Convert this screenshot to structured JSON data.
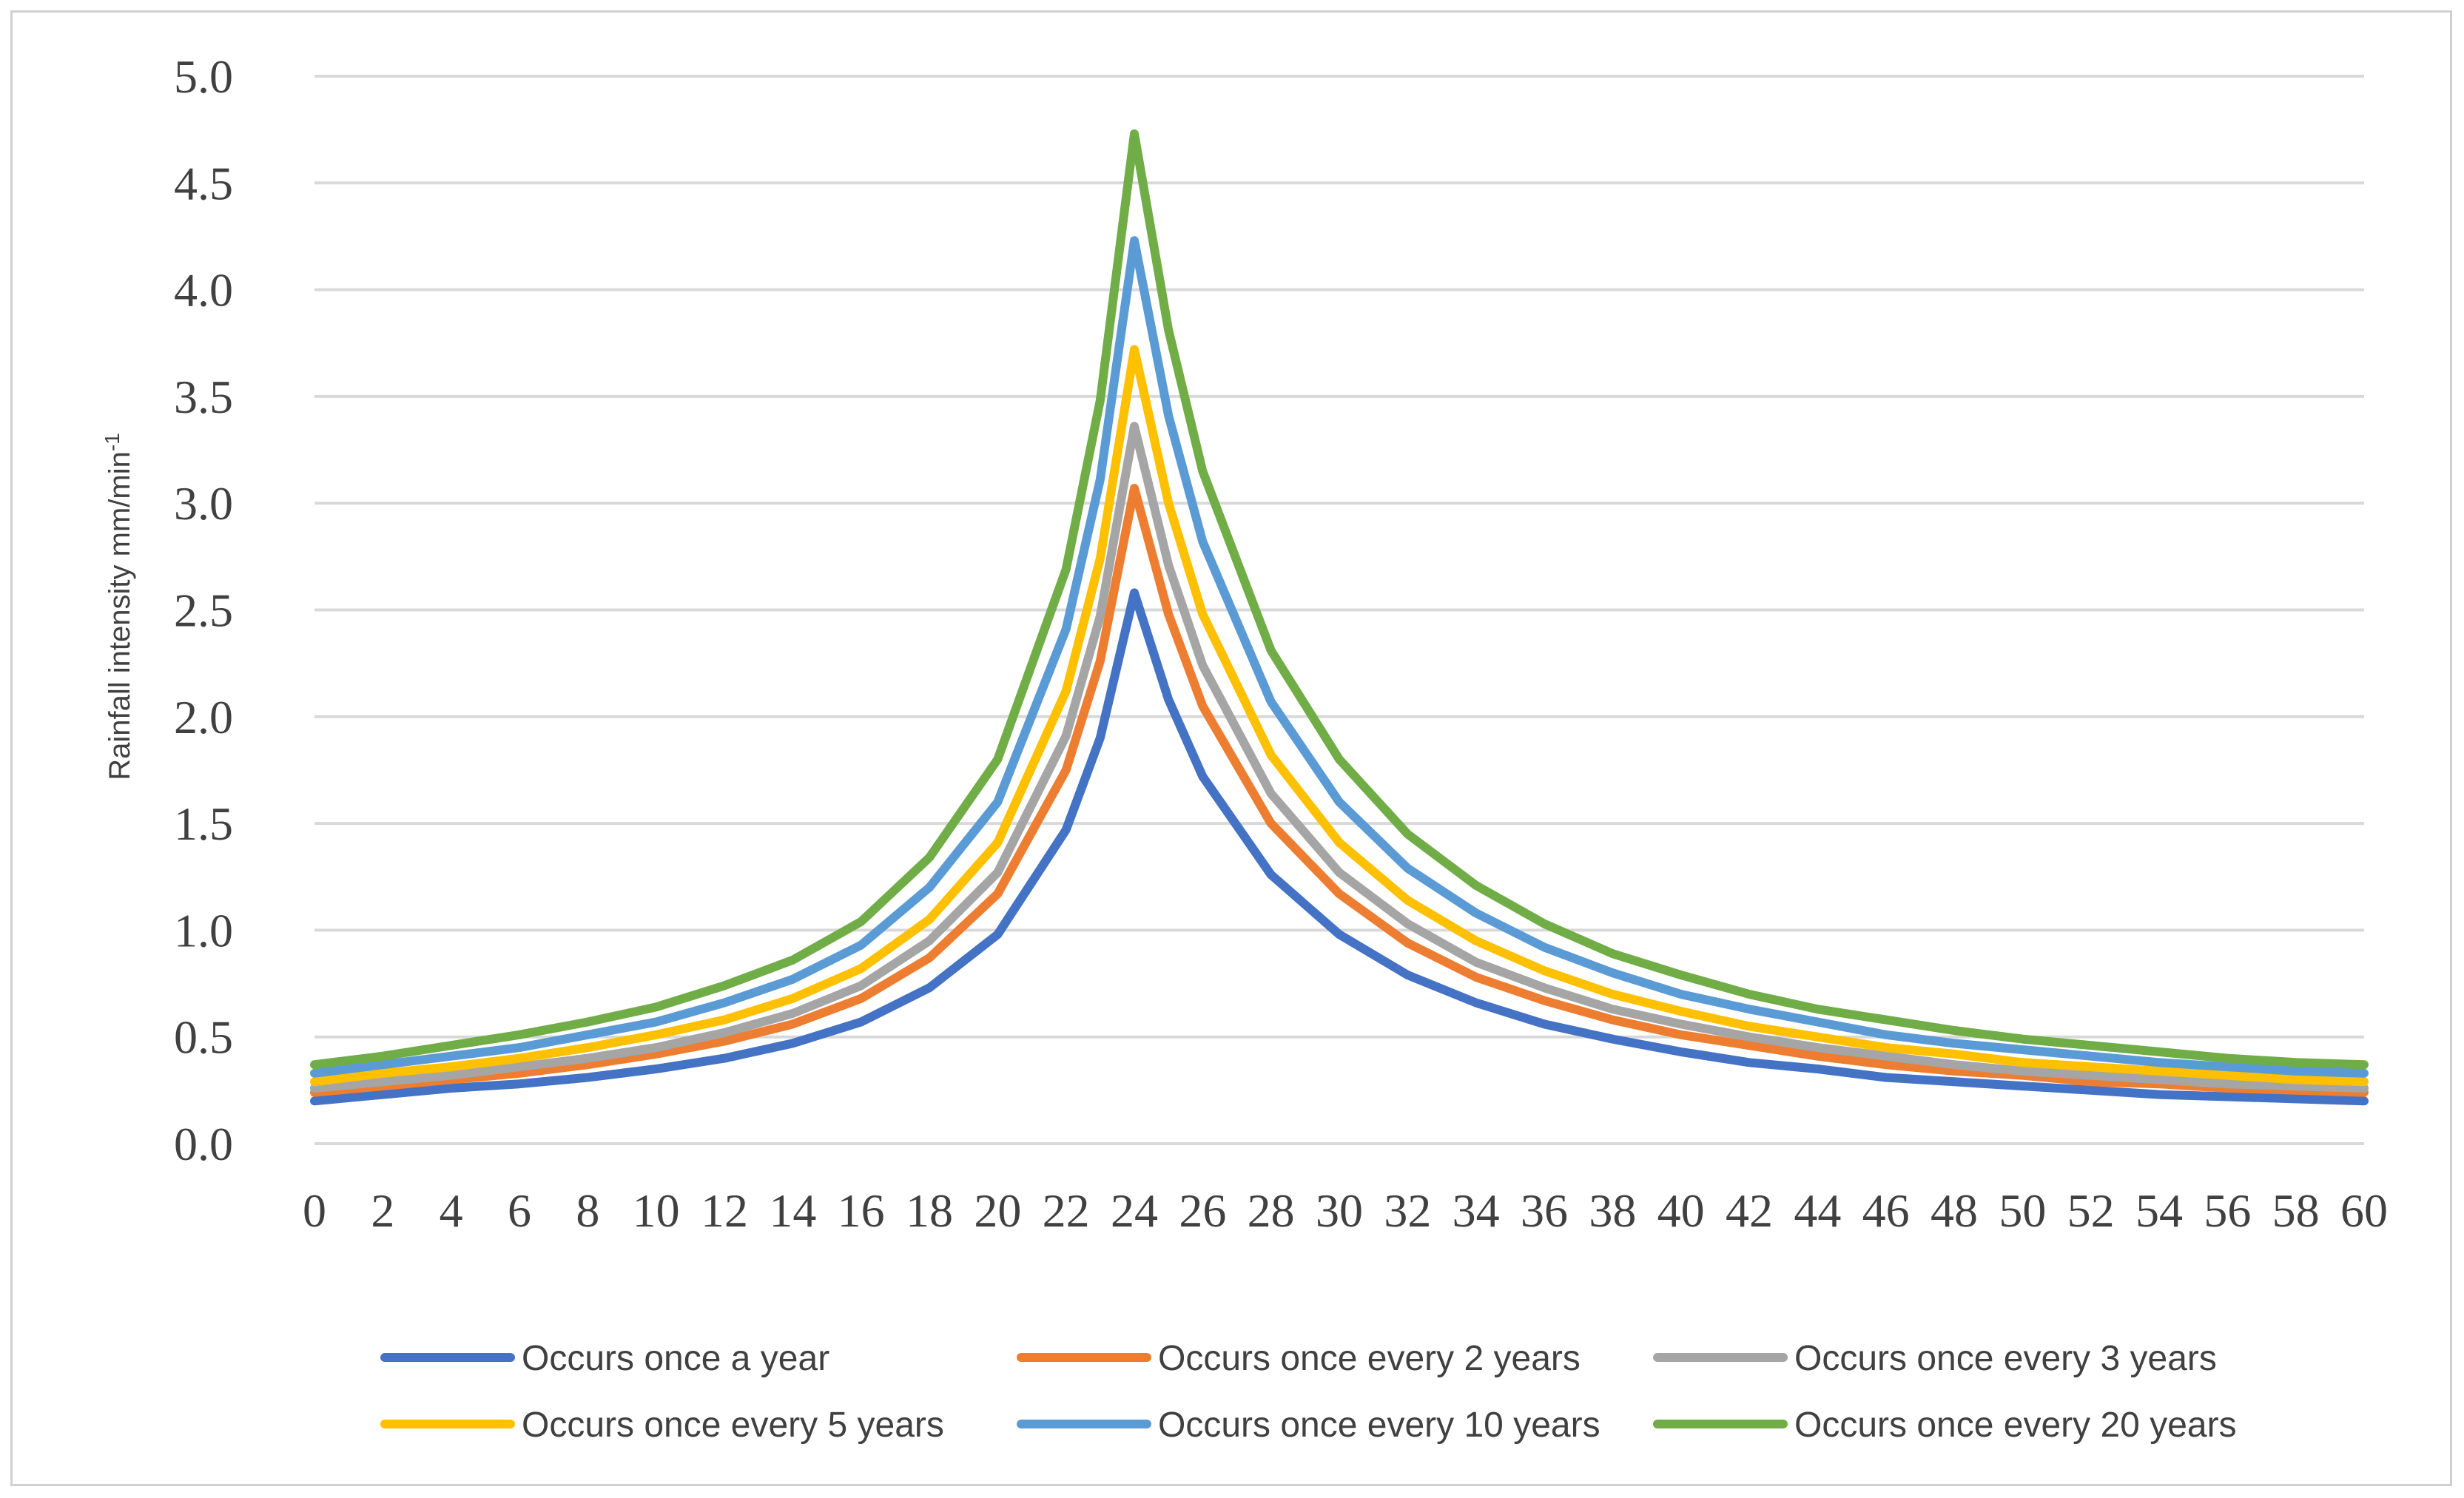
{
  "chart_data": {
    "type": "line",
    "title": "",
    "xlabel": "",
    "ylabel": "Rainfall intensity mm/min",
    "ylabel_superscript": "-1",
    "xlim": [
      0,
      60
    ],
    "ylim": [
      0,
      5
    ],
    "grid": true,
    "legend_position": "bottom",
    "x_ticks": [
      0,
      2,
      4,
      6,
      8,
      10,
      12,
      14,
      16,
      18,
      20,
      22,
      24,
      26,
      28,
      30,
      32,
      34,
      36,
      38,
      40,
      42,
      44,
      46,
      48,
      50,
      52,
      54,
      56,
      58,
      60
    ],
    "y_ticks": [
      "0.0",
      "0.5",
      "1.0",
      "1.5",
      "2.0",
      "2.5",
      "3.0",
      "3.5",
      "4.0",
      "4.5",
      "5.0"
    ],
    "x": [
      0,
      2,
      4,
      6,
      8,
      10,
      12,
      14,
      16,
      18,
      20,
      22,
      23,
      24,
      25,
      26,
      28,
      30,
      32,
      34,
      36,
      38,
      40,
      42,
      44,
      46,
      48,
      50,
      52,
      54,
      56,
      58,
      60
    ],
    "series": [
      {
        "name": "Occurs once a year",
        "color": "#4472C4",
        "values": [
          0.2,
          0.23,
          0.26,
          0.28,
          0.31,
          0.35,
          0.4,
          0.47,
          0.57,
          0.73,
          0.98,
          1.47,
          1.9,
          2.58,
          2.08,
          1.72,
          1.26,
          0.98,
          0.79,
          0.66,
          0.56,
          0.49,
          0.43,
          0.38,
          0.35,
          0.31,
          0.29,
          0.27,
          0.25,
          0.23,
          0.22,
          0.21,
          0.2
        ]
      },
      {
        "name": "Occurs once every 2 years",
        "color": "#ED7D31",
        "values": [
          0.24,
          0.27,
          0.3,
          0.33,
          0.37,
          0.42,
          0.48,
          0.56,
          0.68,
          0.87,
          1.17,
          1.75,
          2.26,
          3.07,
          2.48,
          2.05,
          1.5,
          1.17,
          0.94,
          0.78,
          0.67,
          0.58,
          0.51,
          0.46,
          0.41,
          0.37,
          0.34,
          0.32,
          0.29,
          0.28,
          0.26,
          0.25,
          0.24
        ]
      },
      {
        "name": "Occurs once every 3 years",
        "color": "#A5A5A5",
        "values": [
          0.26,
          0.29,
          0.32,
          0.36,
          0.4,
          0.45,
          0.52,
          0.61,
          0.74,
          0.95,
          1.27,
          1.91,
          2.47,
          3.36,
          2.71,
          2.24,
          1.64,
          1.27,
          1.03,
          0.85,
          0.73,
          0.63,
          0.56,
          0.5,
          0.45,
          0.41,
          0.37,
          0.34,
          0.32,
          0.3,
          0.28,
          0.27,
          0.26
        ]
      },
      {
        "name": "Occurs once every 5 years",
        "color": "#FFC000",
        "values": [
          0.29,
          0.33,
          0.36,
          0.4,
          0.45,
          0.51,
          0.58,
          0.68,
          0.82,
          1.05,
          1.41,
          2.12,
          2.74,
          3.72,
          3.0,
          2.48,
          1.82,
          1.41,
          1.14,
          0.95,
          0.81,
          0.7,
          0.62,
          0.55,
          0.5,
          0.45,
          0.42,
          0.38,
          0.36,
          0.34,
          0.32,
          0.3,
          0.29
        ]
      },
      {
        "name": "Occurs once every 10 years",
        "color": "#5B9BD5",
        "values": [
          0.33,
          0.37,
          0.41,
          0.45,
          0.51,
          0.57,
          0.66,
          0.77,
          0.93,
          1.2,
          1.6,
          2.41,
          3.11,
          4.23,
          3.41,
          2.82,
          2.07,
          1.6,
          1.29,
          1.08,
          0.92,
          0.8,
          0.7,
          0.63,
          0.57,
          0.51,
          0.47,
          0.44,
          0.41,
          0.38,
          0.36,
          0.34,
          0.33
        ]
      },
      {
        "name": "Occurs once every 20 years",
        "color": "#70AD47",
        "values": [
          0.37,
          0.41,
          0.46,
          0.51,
          0.57,
          0.64,
          0.74,
          0.86,
          1.04,
          1.34,
          1.8,
          2.69,
          3.48,
          4.73,
          3.81,
          3.15,
          2.31,
          1.8,
          1.45,
          1.21,
          1.03,
          0.89,
          0.79,
          0.7,
          0.63,
          0.58,
          0.53,
          0.49,
          0.46,
          0.43,
          0.4,
          0.38,
          0.37
        ]
      }
    ]
  }
}
